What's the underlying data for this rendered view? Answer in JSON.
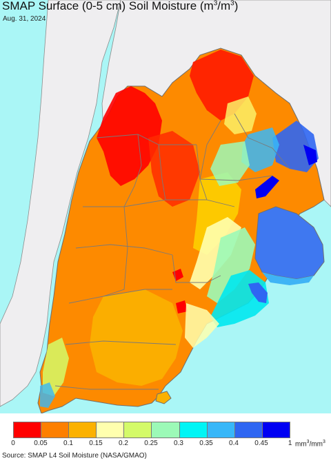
{
  "map": {
    "title_prefix": "SMAP Surface (0-5 cm) Soil Moisture (m",
    "title_sup1": "3",
    "title_mid": "/m",
    "title_sup2": "3",
    "title_suffix": ")",
    "date": "Aug. 31, 2024",
    "colors": {
      "ocean": "#aaf6f6",
      "neighbor_land": "#efeef0",
      "border": "#6f6f6f"
    }
  },
  "legend": {
    "ticks": [
      "0",
      "0.05",
      "0.1",
      "0.15",
      "0.2",
      "0.25",
      "0.3",
      "0.35",
      "0.4",
      "0.45",
      "1"
    ],
    "unit_prefix": "mm",
    "unit_sup1": "3",
    "unit_mid": "/mm",
    "unit_sup2": "3",
    "colors": [
      "#ff0000",
      "#fd7f00",
      "#fbb100",
      "#ffffae",
      "#d4fa69",
      "#9cf9b7",
      "#00f5f5",
      "#38b7f8",
      "#2f66f2",
      "#0000f3"
    ]
  },
  "source": "Source: SMAP L4 Soil Moisture (NASA/GMAO)"
}
